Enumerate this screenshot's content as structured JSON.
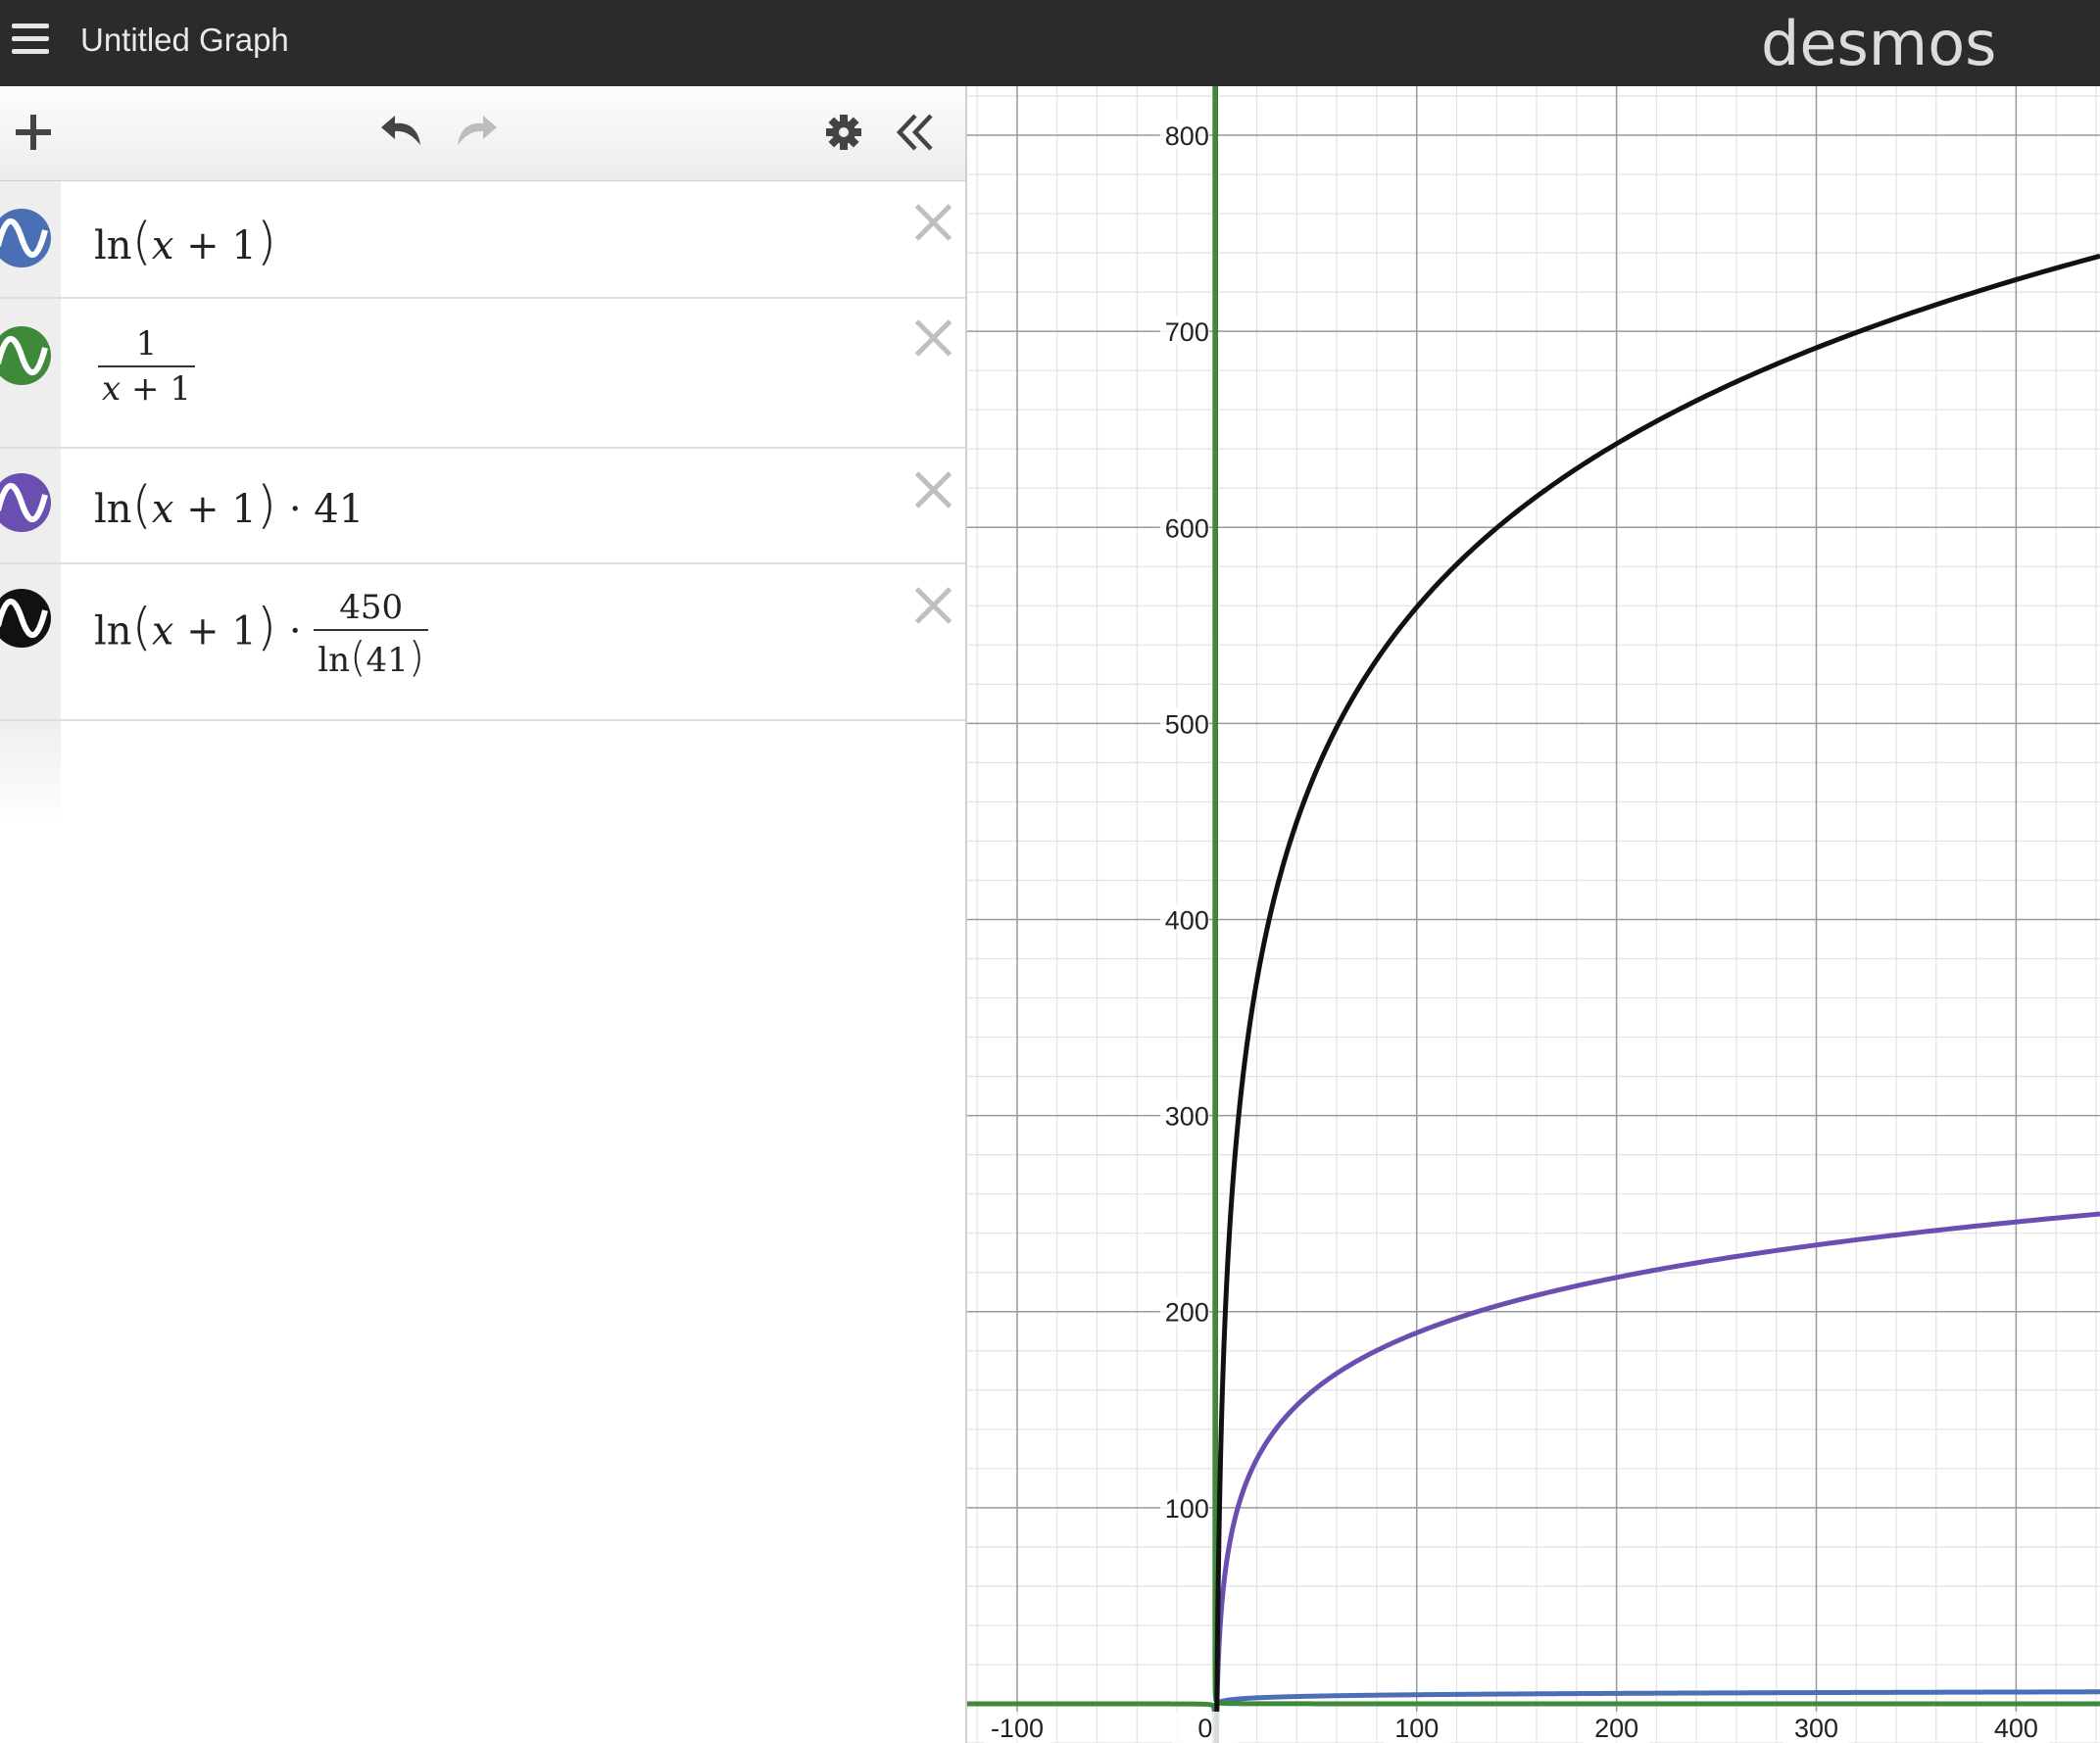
{
  "header": {
    "title": "Untitled Graph",
    "logo": "desmos",
    "menu_icon": "hamburger-icon"
  },
  "toolbar": {
    "add_icon": "plus-icon",
    "undo_icon": "undo-icon",
    "redo_icon": "redo-icon",
    "settings_icon": "gear-icon",
    "collapse_icon": "double-chevron-left-icon"
  },
  "expressions": [
    {
      "id": "1",
      "color": "#4a6fb5",
      "latex": "ln(x+1)",
      "parts": {
        "fn": "ln",
        "var": "x",
        "plus": "+",
        "one": "1"
      }
    },
    {
      "id": "2",
      "color": "#3e8a3a",
      "latex": "1/(x+1)",
      "parts": {
        "num": "1",
        "var": "x",
        "plus": "+",
        "one": "1"
      }
    },
    {
      "id": "3",
      "color": "#6a4fb0",
      "latex": "ln(x+1)·41",
      "parts": {
        "fn": "ln",
        "var": "x",
        "plus": "+",
        "one": "1",
        "dot": "·",
        "factor": "41"
      }
    },
    {
      "id": "4",
      "color": "#111111",
      "latex": "ln(x+1)·450/ln(41)",
      "parts": {
        "fn": "ln",
        "var": "x",
        "plus": "+",
        "one": "1",
        "dot": "·",
        "num": "450",
        "den_fn": "ln",
        "den_arg": "41"
      }
    }
  ],
  "chart_data": {
    "type": "line",
    "xlim": [
      -125,
      442
    ],
    "ylim": [
      -20,
      825
    ],
    "grid": true,
    "x_ticks": [
      "-100",
      "0",
      "100",
      "200",
      "300",
      "400"
    ],
    "y_ticks": [
      "100",
      "200",
      "300",
      "400",
      "500",
      "600",
      "700",
      "800"
    ],
    "series": [
      {
        "name": "ln(x+1)",
        "color": "#4a6fb5",
        "expr": "ln(x+1)"
      },
      {
        "name": "1/(x+1)",
        "color": "#3e8a3a",
        "expr": "1/(x+1)"
      },
      {
        "name": "ln(x+1)·41",
        "color": "#6a4fb0",
        "expr": "41*ln(x+1)"
      },
      {
        "name": "ln(x+1)·450/ln(41)",
        "color": "#111111",
        "expr": "450*ln(x+1)/ln(41)"
      }
    ]
  }
}
